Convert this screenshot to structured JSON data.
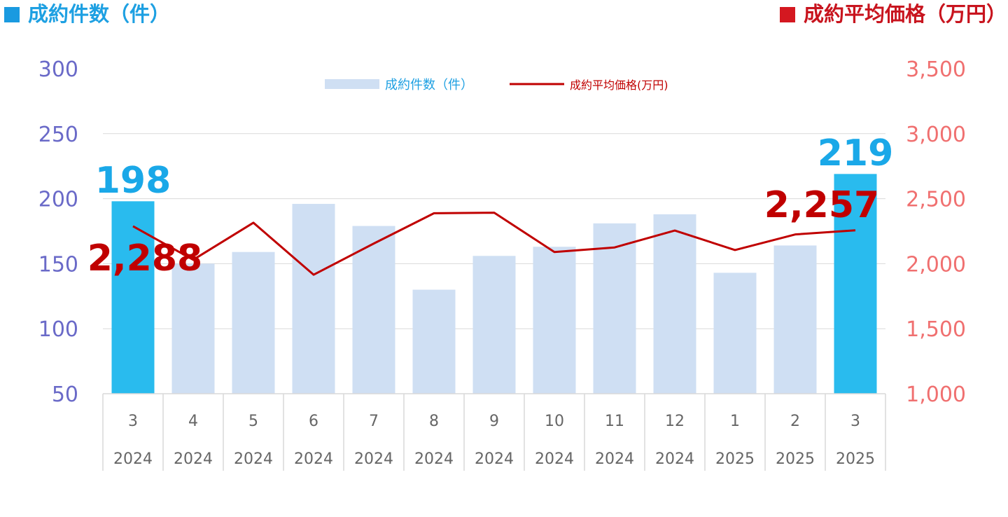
{
  "header": {
    "left_title": "成約件数（件）",
    "right_title": "成約平均価格（万円）"
  },
  "colors": {
    "bar": "#cfdff3",
    "bar_highlight": "#29bbee",
    "line": "#c00000",
    "left_axis": "#6a6ac8",
    "right_axis": "#f07070",
    "header_left": "#1ea0e2",
    "header_right": "#c8141e",
    "label_count": "#1aa8e8",
    "label_price": "#c00000"
  },
  "chart_data": {
    "type": "bar",
    "categories": [
      {
        "month": "3",
        "year": "2024"
      },
      {
        "month": "4",
        "year": "2024"
      },
      {
        "month": "5",
        "year": "2024"
      },
      {
        "month": "6",
        "year": "2024"
      },
      {
        "month": "7",
        "year": "2024"
      },
      {
        "month": "8",
        "year": "2024"
      },
      {
        "month": "9",
        "year": "2024"
      },
      {
        "month": "10",
        "year": "2024"
      },
      {
        "month": "11",
        "year": "2024"
      },
      {
        "month": "12",
        "year": "2024"
      },
      {
        "month": "1",
        "year": "2025"
      },
      {
        "month": "2",
        "year": "2025"
      },
      {
        "month": "3",
        "year": "2025"
      }
    ],
    "series": [
      {
        "name": "成約件数（件）",
        "type": "bar",
        "axis": "left",
        "values": [
          198,
          150,
          159,
          196,
          179,
          130,
          156,
          163,
          181,
          188,
          143,
          164,
          219
        ],
        "highlight": [
          0,
          12
        ]
      },
      {
        "name": "成約平均価格(万円)",
        "type": "line",
        "axis": "right",
        "values": [
          2288,
          2030,
          2315,
          1915,
          2155,
          2388,
          2392,
          2090,
          2125,
          2255,
          2105,
          2225,
          2257
        ]
      }
    ],
    "y_left": {
      "min": 50,
      "max": 300,
      "ticks": [
        "50",
        "100",
        "150",
        "200",
        "250",
        "300"
      ]
    },
    "y_right": {
      "min": 1000,
      "max": 3500,
      "ticks": [
        "1,000",
        "1,500",
        "2,000",
        "2,500",
        "3,000",
        "3,500"
      ]
    },
    "data_labels": [
      {
        "text": "198",
        "series": 0,
        "index": 0
      },
      {
        "text": "219",
        "series": 0,
        "index": 12
      },
      {
        "text": "2,288",
        "series": 1,
        "index": 0
      },
      {
        "text": "2,257",
        "series": 1,
        "index": 12
      }
    ],
    "legend": {
      "position": "top-center",
      "items": [
        "成約件数（件）",
        "成約平均価格(万円)"
      ]
    },
    "grid": true
  }
}
